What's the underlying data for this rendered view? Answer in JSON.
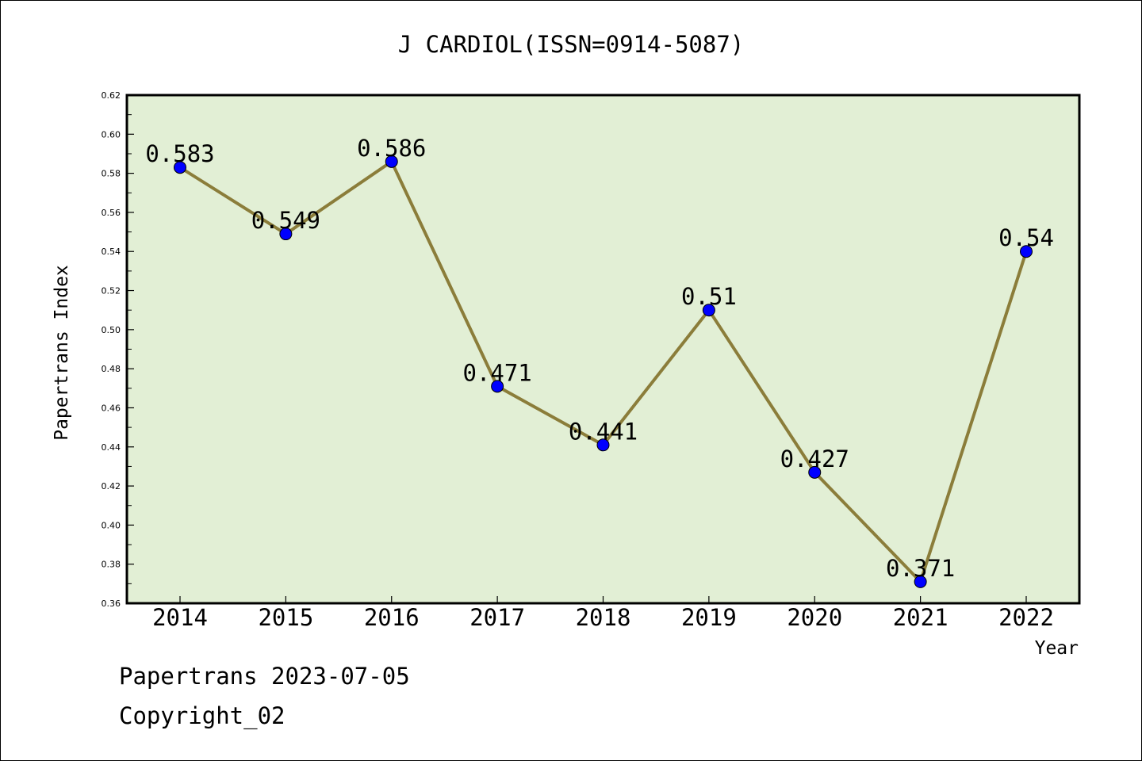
{
  "chart_data": {
    "type": "line",
    "title": "J CARDIOL(ISSN=0914-5087)",
    "xlabel": "Year",
    "ylabel": "Papertrans Index",
    "categories": [
      "2014",
      "2015",
      "2016",
      "2017",
      "2018",
      "2019",
      "2020",
      "2021",
      "2022"
    ],
    "values": [
      0.583,
      0.549,
      0.586,
      0.471,
      0.441,
      0.51,
      0.427,
      0.371,
      0.54
    ],
    "data_labels": [
      "0.583",
      "0.549",
      "0.586",
      "0.471",
      "0.441",
      "0.51",
      "0.427",
      "0.371",
      "0.54"
    ],
    "ylim": [
      0.36,
      0.62
    ],
    "yticks": [
      "0.36",
      "0.38",
      "0.40",
      "0.42",
      "0.44",
      "0.46",
      "0.48",
      "0.50",
      "0.52",
      "0.54",
      "0.56",
      "0.58",
      "0.60",
      "0.62"
    ],
    "grid": false,
    "legend": "none",
    "colors": {
      "plot_background": "#e2efd5",
      "line": "#8b7d3a",
      "marker": "#0000ff"
    }
  },
  "footer": {
    "line1": "Papertrans 2023-07-05",
    "line2": "Copyright_02"
  }
}
